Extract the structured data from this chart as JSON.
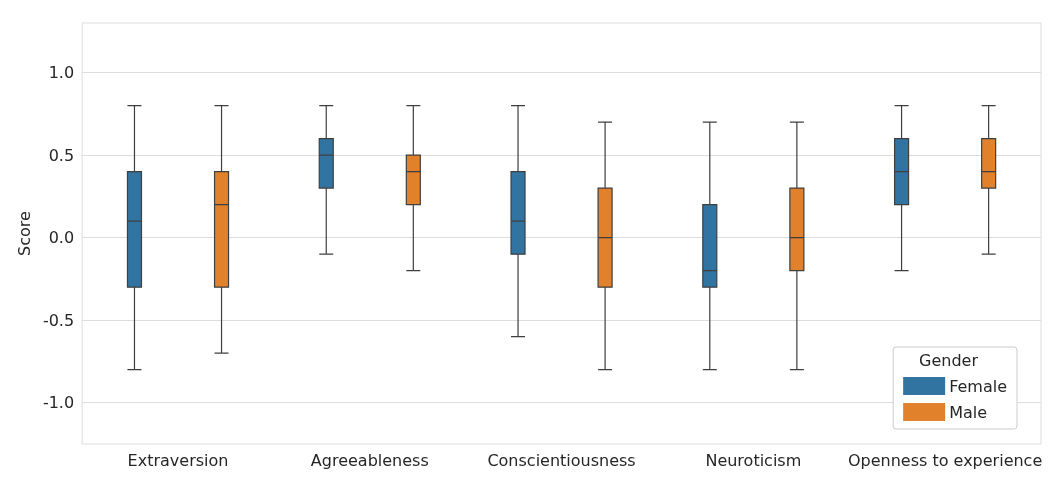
{
  "chart_data": {
    "type": "box",
    "ylabel": "Score",
    "legend_title": "Gender",
    "legend": "bottom right",
    "grid": "y",
    "categories": [
      "Extraversion",
      "Agreeableness",
      "Conscientiousness",
      "Neuroticism",
      "Openness to experience"
    ],
    "ylim": [
      -1.25,
      1.3
    ],
    "yticks": [
      {
        "value": -1,
        "label": "-1.0"
      },
      {
        "value": -0.5,
        "label": "-0.5"
      },
      {
        "value": 0,
        "label": "0.0"
      },
      {
        "value": 0.5,
        "label": "0.5"
      },
      {
        "value": 1,
        "label": "1.0"
      }
    ],
    "series": [
      {
        "name": "Female",
        "color": "#3274a1",
        "boxes": [
          {
            "low": -0.8,
            "q1": -0.3,
            "median": 0.1,
            "q3": 0.4,
            "high": 0.8
          },
          {
            "low": -0.1,
            "q1": 0.3,
            "median": 0.5,
            "q3": 0.6,
            "high": 0.8
          },
          {
            "low": -0.6,
            "q1": -0.1,
            "median": 0.1,
            "q3": 0.4,
            "high": 0.8
          },
          {
            "low": -0.8,
            "q1": -0.3,
            "median": -0.2,
            "q3": 0.2,
            "high": 0.7
          },
          {
            "low": -0.2,
            "q1": 0.2,
            "median": 0.4,
            "q3": 0.6,
            "high": 0.8
          }
        ]
      },
      {
        "name": "Male",
        "color": "#e1812c",
        "boxes": [
          {
            "low": -0.7,
            "q1": -0.3,
            "median": 0.2,
            "q3": 0.4,
            "high": 0.8
          },
          {
            "low": -0.2,
            "q1": 0.2,
            "median": 0.4,
            "q3": 0.5,
            "high": 0.8
          },
          {
            "low": -0.8,
            "q1": -0.3,
            "median": 0.0,
            "q3": 0.3,
            "high": 0.7
          },
          {
            "low": -0.8,
            "q1": -0.2,
            "median": 0.0,
            "q3": 0.3,
            "high": 0.7
          },
          {
            "low": -0.1,
            "q1": 0.3,
            "median": 0.4,
            "q3": 0.6,
            "high": 0.8
          }
        ]
      }
    ]
  }
}
